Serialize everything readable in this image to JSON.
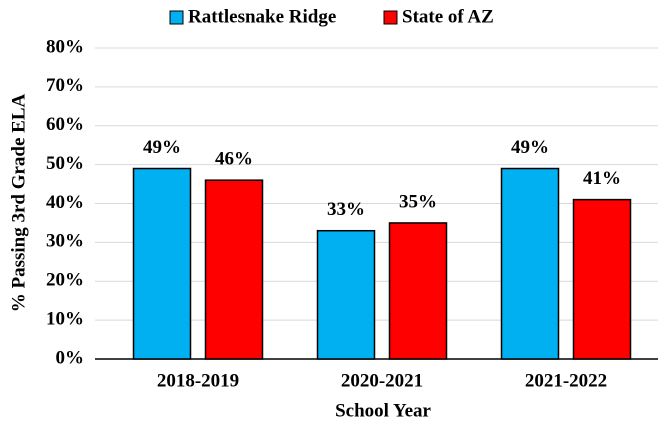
{
  "chart_data": {
    "type": "bar",
    "categories": [
      "2018-2019",
      "2020-2021",
      "2021-2022"
    ],
    "series": [
      {
        "name": "Rattlesnake Ridge",
        "color": "#00b0f0",
        "values": [
          49,
          33,
          49
        ],
        "value_labels": [
          "49%",
          "33%",
          "49%"
        ]
      },
      {
        "name": "State of AZ",
        "color": "#ff0000",
        "values": [
          46,
          35,
          41
        ],
        "value_labels": [
          "46%",
          "35%",
          "41%"
        ]
      }
    ],
    "xlabel": "School Year",
    "ylabel": "% Passing 3rd Grade ELA",
    "ylim": [
      0,
      80
    ],
    "yticks": [
      {
        "value": 0,
        "label": "0%"
      },
      {
        "value": 10,
        "label": "10%"
      },
      {
        "value": 20,
        "label": "20%"
      },
      {
        "value": 30,
        "label": "30%"
      },
      {
        "value": 40,
        "label": "40%"
      },
      {
        "value": 50,
        "label": "50%"
      },
      {
        "value": 60,
        "label": "60%"
      },
      {
        "value": 70,
        "label": "70%"
      },
      {
        "value": 80,
        "label": "80%"
      }
    ],
    "grid": true,
    "legend": "top"
  }
}
